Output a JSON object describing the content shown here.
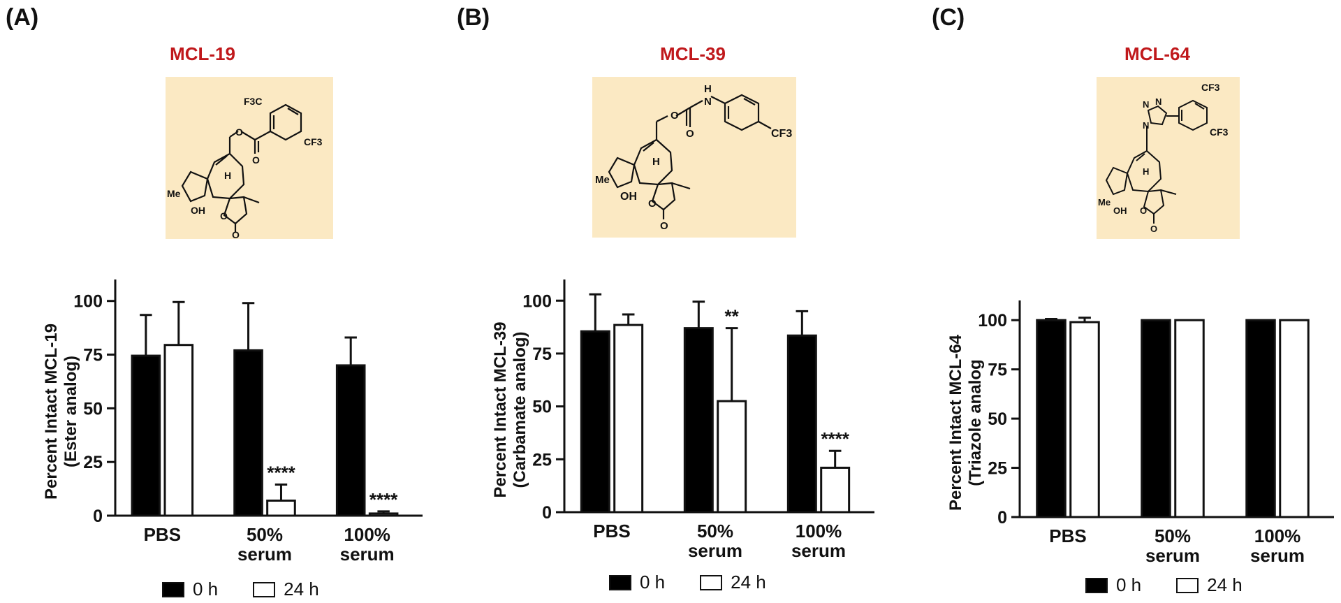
{
  "panels": [
    {
      "letter": "(A)",
      "compound": "MCL-19",
      "structure_labels": [
        "F3C",
        "CF3",
        "H",
        "Me",
        "OH",
        "O",
        "O",
        "O",
        "O"
      ],
      "legend": [
        "0 h",
        "24 h"
      ],
      "colors": {
        "title": "#c0181b",
        "structure_bg": "#fbe9c3",
        "bar_0h": "#000000",
        "bar_24h": "#ffffff"
      }
    },
    {
      "letter": "(B)",
      "compound": "MCL-39",
      "structure_labels": [
        "H",
        "N",
        "CF3",
        "H",
        "Me",
        "OH",
        "O",
        "O",
        "O",
        "O"
      ],
      "legend": [
        "0 h",
        "24 h"
      ],
      "colors": {
        "title": "#c0181b",
        "structure_bg": "#fbe9c3",
        "bar_0h": "#000000",
        "bar_24h": "#ffffff"
      }
    },
    {
      "letter": "(C)",
      "compound": "MCL-64",
      "structure_labels": [
        "N",
        "N",
        "N",
        "CF3",
        "CF3",
        "H",
        "Me",
        "OH",
        "O",
        "O"
      ],
      "legend": [
        "0 h",
        "24 h"
      ],
      "colors": {
        "title": "#c0181b",
        "structure_bg": "#fbe9c3",
        "bar_0h": "#000000",
        "bar_24h": "#ffffff"
      }
    }
  ],
  "chart_data": [
    {
      "type": "bar",
      "ylabel": "Percent Intact MCL-19",
      "ylabel2": "(Ester analog)",
      "ylim": [
        0,
        110
      ],
      "yticks": [
        "0",
        "25",
        "50",
        "75",
        "100"
      ],
      "categories": [
        [
          "PBS"
        ],
        [
          "50%",
          "serum"
        ],
        [
          "100%",
          "serum"
        ]
      ],
      "series": [
        {
          "name": "0 h",
          "values": [
            74.5,
            77,
            70
          ],
          "errors": [
            19,
            22,
            13
          ]
        },
        {
          "name": "24 h",
          "values": [
            79.5,
            7,
            1
          ],
          "errors": [
            20,
            7.5,
            1
          ]
        }
      ],
      "annotations": [
        {
          "category": 1,
          "series": 1,
          "text": "****"
        },
        {
          "category": 2,
          "series": 1,
          "text": "****"
        }
      ]
    },
    {
      "type": "bar",
      "ylabel": "Percent Intact MCL-39",
      "ylabel2": "(Carbamate analog)",
      "ylim": [
        0,
        110
      ],
      "yticks": [
        "0",
        "25",
        "50",
        "75",
        "100"
      ],
      "categories": [
        [
          "PBS"
        ],
        [
          "50%",
          "serum"
        ],
        [
          "100%",
          "serum"
        ]
      ],
      "series": [
        {
          "name": "0 h",
          "values": [
            85.5,
            87,
            83.5
          ],
          "errors": [
            17.5,
            12.5,
            11.5
          ]
        },
        {
          "name": "24 h",
          "values": [
            88.5,
            52.5,
            21
          ],
          "errors": [
            5,
            34.5,
            8
          ]
        }
      ],
      "annotations": [
        {
          "category": 1,
          "series": 1,
          "text": "**"
        },
        {
          "category": 2,
          "series": 1,
          "text": "****"
        }
      ]
    },
    {
      "type": "bar",
      "ylabel": "Percent Intact MCL-64",
      "ylabel2": "(Triazole analog",
      "ylim": [
        0,
        110
      ],
      "yticks": [
        "0",
        "25",
        "50",
        "75",
        "100"
      ],
      "categories": [
        [
          "PBS"
        ],
        [
          "50%",
          "serum"
        ],
        [
          "100%",
          "serum"
        ]
      ],
      "series": [
        {
          "name": "0 h",
          "values": [
            100,
            100,
            100
          ],
          "errors": [
            0.6,
            0,
            0
          ]
        },
        {
          "name": "24 h",
          "values": [
            99,
            100,
            100
          ],
          "errors": [
            2.2,
            0,
            0
          ]
        }
      ],
      "annotations": []
    }
  ]
}
